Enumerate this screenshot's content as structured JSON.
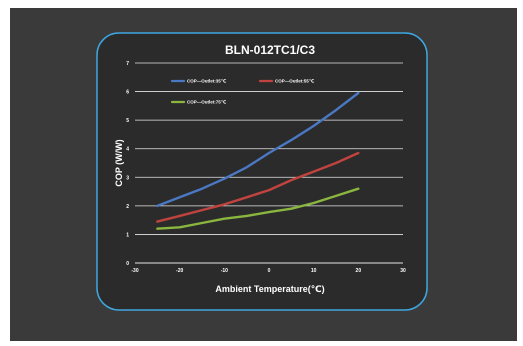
{
  "chart_data": {
    "type": "line",
    "title": "BLN-012TC1/C3",
    "xlabel": "Ambient Temperature(℃)",
    "ylabel": "COP (W/W)",
    "xlim": [
      -30,
      30
    ],
    "ylim": [
      0,
      7
    ],
    "xticks": [
      "-30",
      "-20",
      "-10",
      "0",
      "10",
      "20",
      "30"
    ],
    "yticks": [
      "0",
      "1",
      "2",
      "3",
      "4",
      "5",
      "6",
      "7"
    ],
    "grid": "horizontal",
    "legend_position": "top-left",
    "series": [
      {
        "name": "COP—Outlet:35℃",
        "color": "#4a78c2",
        "x": [
          -25,
          -20,
          -15,
          -10,
          -5,
          0,
          5,
          10,
          15,
          20
        ],
        "y": [
          2.0,
          2.3,
          2.6,
          2.95,
          3.35,
          3.85,
          4.3,
          4.8,
          5.35,
          5.95
        ]
      },
      {
        "name": "COP—Outlet:55℃",
        "color": "#c0433f",
        "x": [
          -25,
          -20,
          -15,
          -10,
          -5,
          0,
          5,
          10,
          15,
          20
        ],
        "y": [
          1.45,
          1.65,
          1.85,
          2.05,
          2.3,
          2.55,
          2.9,
          3.2,
          3.5,
          3.85
        ]
      },
      {
        "name": "COP—Outlet:75℃",
        "color": "#8ab53f",
        "x": [
          -25,
          -20,
          -15,
          -10,
          -5,
          0,
          5,
          10,
          15,
          20
        ],
        "y": [
          1.2,
          1.25,
          1.4,
          1.55,
          1.65,
          1.78,
          1.9,
          2.1,
          2.35,
          2.6
        ]
      }
    ]
  }
}
